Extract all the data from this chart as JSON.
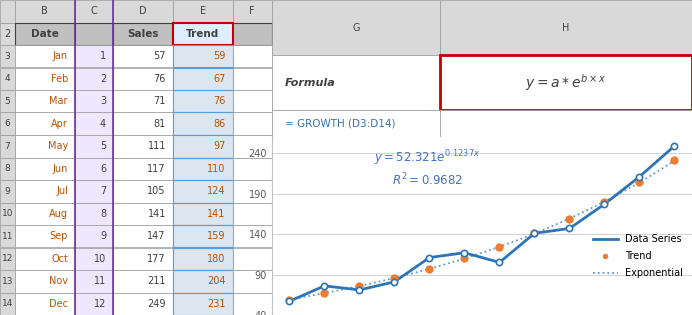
{
  "months": [
    "Jan",
    "Feb",
    "Mar",
    "Apr",
    "May",
    "Jun",
    "Jul",
    "Aug",
    "Sep",
    "Oct",
    "Nov",
    "Dec"
  ],
  "x": [
    1,
    2,
    3,
    4,
    5,
    6,
    7,
    8,
    9,
    10,
    11,
    12
  ],
  "sales": [
    57,
    76,
    71,
    81,
    111,
    117,
    105,
    141,
    147,
    177,
    211,
    249
  ],
  "trend": [
    59,
    67,
    76,
    86,
    97,
    110,
    124,
    141,
    159,
    180,
    204,
    231
  ],
  "a": 52.321,
  "b": 0.1237,
  "r2": 0.9682,
  "ylim": [
    40,
    260
  ],
  "yticks": [
    40,
    90,
    140,
    190,
    240
  ],
  "chart_bg": "#ffffff",
  "data_line_color": "#2E75B6",
  "trend_dot_color": "#ED7D31",
  "exp_line_color": "#5B9BD5",
  "grid_color": "#BFBFBF",
  "annotation_color": "#4472C4",
  "formula_box_border": "#C00000",
  "header_bg": "#D9D9D9",
  "col_header_bg": "#C0C0C0",
  "trend_cell_bg": "#DCE6F1",
  "trend_border": "#5B9BD5",
  "c_col_bg": "#EEE8FF",
  "purple_line": "#7030A0",
  "orange_text": "#C05000",
  "formula_color": "#2E75B6",
  "row_num_bg": "#D9D9D9",
  "fig_bg": "#E8E8E8",
  "data_rows": [
    [
      "Jan",
      1,
      57,
      59
    ],
    [
      "Feb",
      2,
      76,
      67
    ],
    [
      "Mar",
      3,
      71,
      76
    ],
    [
      "Apr",
      4,
      81,
      86
    ],
    [
      "May",
      5,
      111,
      97
    ],
    [
      "Jun",
      6,
      117,
      110
    ],
    [
      "Jul",
      7,
      105,
      124
    ],
    [
      "Aug",
      8,
      141,
      141
    ],
    [
      "Sep",
      9,
      147,
      159
    ],
    [
      "Oct",
      10,
      177,
      180
    ],
    [
      "Nov",
      11,
      211,
      204
    ],
    [
      "Dec",
      12,
      249,
      231
    ]
  ]
}
